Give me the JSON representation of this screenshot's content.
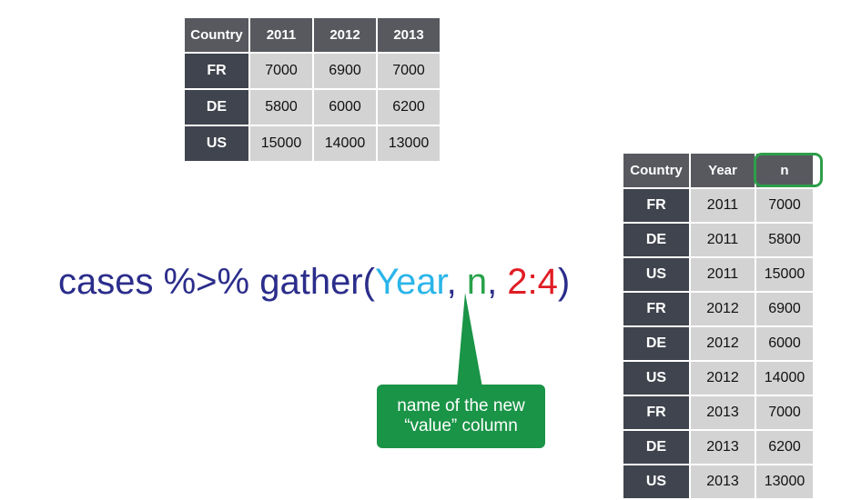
{
  "wide_table": {
    "headers": [
      "Country",
      "2011",
      "2012",
      "2013"
    ],
    "rows": [
      [
        "FR",
        "7000",
        "6900",
        "7000"
      ],
      [
        "DE",
        "5800",
        "6000",
        "6200"
      ],
      [
        "US",
        "15000",
        "14000",
        "13000"
      ]
    ]
  },
  "long_table": {
    "headers": [
      "Country",
      "Year",
      "n"
    ],
    "rows": [
      [
        "FR",
        "2011",
        "7000"
      ],
      [
        "DE",
        "2011",
        "5800"
      ],
      [
        "US",
        "2011",
        "15000"
      ],
      [
        "FR",
        "2012",
        "6900"
      ],
      [
        "DE",
        "2012",
        "6000"
      ],
      [
        "US",
        "2012",
        "14000"
      ],
      [
        "FR",
        "2013",
        "7000"
      ],
      [
        "DE",
        "2013",
        "6200"
      ],
      [
        "US",
        "2013",
        "13000"
      ]
    ]
  },
  "code": {
    "prefix": "cases %>% gather(",
    "key_arg": "Year",
    "sep1": ", ",
    "value_arg": "n",
    "sep2": ", ",
    "cols_arg": "2:4",
    "suffix": ")"
  },
  "callout": {
    "line1": "name of the new",
    "line2": "“value” column"
  },
  "colors": {
    "header_bg": "#57595f",
    "row_header_bg": "#40444e",
    "cell_bg": "#d3d3d3",
    "code_dark_blue": "#2b2d8b",
    "code_light_blue": "#2bb5e9",
    "code_green": "#29a14a",
    "code_red": "#e01c24",
    "callout_green": "#1a9447"
  }
}
